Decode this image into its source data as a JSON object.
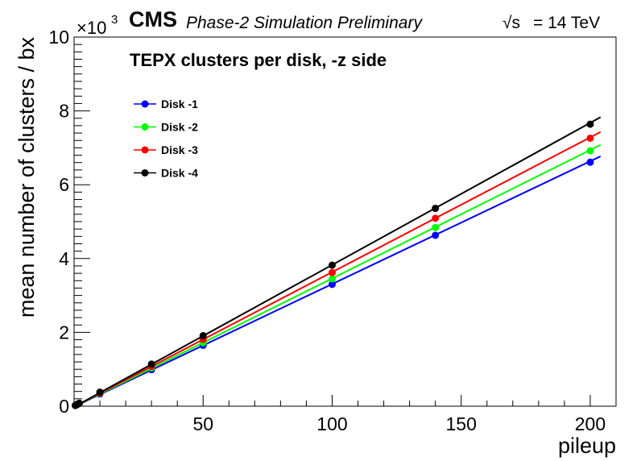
{
  "header": {
    "cms": "CMS",
    "subtitle": "Phase-2 Simulation Preliminary",
    "energy_sqrt": "√s",
    "energy_rest": "= 14 TeV"
  },
  "chart_data": {
    "type": "line",
    "title": "TEPX clusters per disk, -z side",
    "xlabel": "pileup",
    "ylabel": "mean number of clusters / bx",
    "y_multiplier_base": "×10",
    "y_multiplier_exp": "3",
    "xlim": [
      0,
      210
    ],
    "ylim": [
      0,
      10
    ],
    "x_ticks": [
      50,
      100,
      150,
      200
    ],
    "x_tick_labels": [
      "50",
      "100",
      "150",
      "200"
    ],
    "y_ticks": [
      0,
      2,
      4,
      6,
      8,
      10
    ],
    "y_tick_labels": [
      "0",
      "2",
      "4",
      "6",
      "8",
      "10"
    ],
    "legend_position": "top-left",
    "grid": false,
    "x": [
      0.5,
      1,
      1.5,
      2,
      10,
      30,
      50,
      100,
      140,
      200
    ],
    "series": [
      {
        "name": "Disk -1",
        "color": "#0000ff",
        "values": [
          0.02,
          0.04,
          0.06,
          0.07,
          0.33,
          0.99,
          1.65,
          3.3,
          4.63,
          6.61
        ],
        "fit": [
          -0.02,
          6.77
        ]
      },
      {
        "name": "Disk -2",
        "color": "#00ff00",
        "values": [
          0.02,
          0.04,
          0.06,
          0.07,
          0.35,
          1.04,
          1.72,
          3.45,
          4.84,
          6.92
        ],
        "fit": [
          -0.02,
          7.08
        ]
      },
      {
        "name": "Disk -3",
        "color": "#ff0000",
        "values": [
          0.02,
          0.04,
          0.06,
          0.08,
          0.36,
          1.08,
          1.81,
          3.62,
          5.09,
          7.26
        ],
        "fit": [
          -0.02,
          7.43
        ]
      },
      {
        "name": "Disk -4",
        "color": "#000000",
        "values": [
          0.02,
          0.04,
          0.06,
          0.08,
          0.38,
          1.14,
          1.91,
          3.82,
          5.36,
          7.64
        ],
        "fit": [
          -0.02,
          7.83
        ]
      }
    ]
  }
}
